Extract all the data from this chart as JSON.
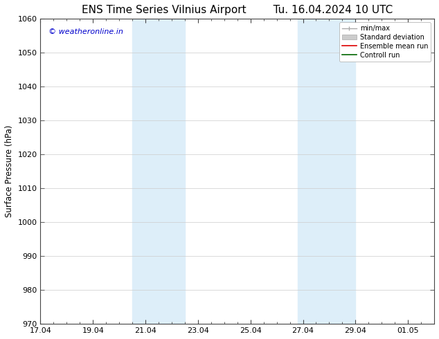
{
  "title_left": "ENS Time Series Vilnius Airport",
  "title_right": "Tu. 16.04.2024 10 UTC",
  "ylabel": "Surface Pressure (hPa)",
  "ylim": [
    970,
    1060
  ],
  "yticks": [
    970,
    980,
    990,
    1000,
    1010,
    1020,
    1030,
    1040,
    1050,
    1060
  ],
  "xtick_labels": [
    "17.04",
    "19.04",
    "21.04",
    "23.04",
    "25.04",
    "27.04",
    "29.04",
    "01.05"
  ],
  "xtick_positions": [
    0,
    2,
    4,
    6,
    8,
    10,
    12,
    14
  ],
  "shaded_regions": [
    {
      "start": 3.5,
      "end": 5.5,
      "color": "#ddeef9"
    },
    {
      "start": 9.8,
      "end": 12.0,
      "color": "#ddeef9"
    }
  ],
  "watermark_text": "© weatheronline.in",
  "watermark_color": "#0000cc",
  "watermark_fontsize": 8,
  "background_color": "#ffffff",
  "grid_color": "#cccccc",
  "legend_items": [
    {
      "label": "min/max",
      "color": "#aaaaaa",
      "lw": 1.0
    },
    {
      "label": "Standard deviation",
      "color": "#cccccc",
      "lw": 5
    },
    {
      "label": "Ensemble mean run",
      "color": "#dd0000",
      "lw": 1.2
    },
    {
      "label": "Controll run",
      "color": "#006600",
      "lw": 1.2
    }
  ],
  "title_fontsize": 11,
  "axis_fontsize": 8.5,
  "tick_fontsize": 8,
  "days_total": 15
}
